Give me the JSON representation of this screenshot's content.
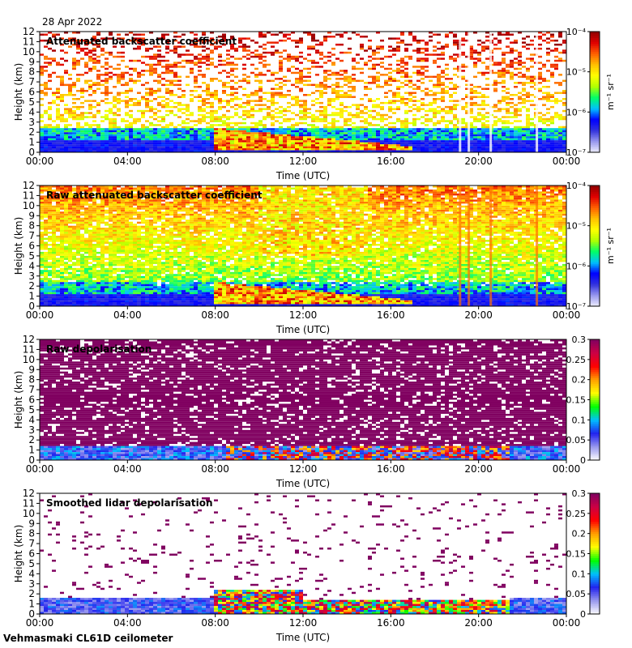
{
  "header": {
    "date": "28 Apr 2022"
  },
  "footer": {
    "instrument": "Vehmasmaki CL61D ceilometer"
  },
  "colors": {
    "background": "#ffffff",
    "noise_fill": "#f3f3f7",
    "backscatter_scale": [
      "#f0f0ff",
      "#9999ee",
      "#3333dd",
      "#0000ff",
      "#00c0ff",
      "#00ff66",
      "#b0ff00",
      "#ffff00",
      "#ffc000",
      "#ff6000",
      "#e00000",
      "#900000"
    ],
    "depol_scale": [
      "#ffffff",
      "#9999ee",
      "#2222ee",
      "#00c0ff",
      "#00ff00",
      "#ffff00",
      "#ffa000",
      "#ff0000",
      "#cc0044",
      "#800060"
    ]
  },
  "chart_data": [
    {
      "type": "heatmap",
      "title": "Attenuated backscatter coefficient",
      "xlabel": "Time (UTC)",
      "ylabel": "Height (km)",
      "x_ticks": [
        "00:00",
        "04:00",
        "08:00",
        "12:00",
        "16:00",
        "20:00",
        "00:00"
      ],
      "y_ticks": [
        "0",
        "1",
        "2",
        "3",
        "4",
        "5",
        "6",
        "7",
        "8",
        "9",
        "10",
        "11",
        "12"
      ],
      "xlim_hours": [
        0,
        24
      ],
      "ylim_km": [
        0,
        12
      ],
      "colorbar": {
        "label": "m⁻¹ sr⁻¹",
        "scale": "log",
        "ticks": [
          "10⁻⁷",
          "10⁻⁶",
          "10⁻⁵",
          "10⁻⁴"
        ],
        "range": [
          1e-07,
          0.0001
        ]
      },
      "features": [
        {
          "name": "boundary layer",
          "time_range_h": [
            0,
            24
          ],
          "height_range_km": [
            0,
            1.5
          ]
        },
        {
          "name": "elevated aerosol layer",
          "time_range_h": [
            8,
            17
          ],
          "height_range_km": [
            0.5,
            2.5
          ]
        },
        {
          "name": "precipitation streaks",
          "times_h": [
            19.1,
            19.5,
            20.5,
            22.6
          ]
        }
      ]
    },
    {
      "type": "heatmap",
      "title": "Raw attenuated backscatter coefficient",
      "xlabel": "Time (UTC)",
      "ylabel": "Height (km)",
      "x_ticks": [
        "00:00",
        "04:00",
        "08:00",
        "12:00",
        "16:00",
        "20:00",
        "00:00"
      ],
      "y_ticks": [
        "0",
        "1",
        "2",
        "3",
        "4",
        "5",
        "6",
        "7",
        "8",
        "9",
        "10",
        "11",
        "12"
      ],
      "xlim_hours": [
        0,
        24
      ],
      "ylim_km": [
        0,
        12
      ],
      "colorbar": {
        "label": "m⁻¹ sr⁻¹",
        "scale": "log",
        "ticks": [
          "10⁻⁷",
          "10⁻⁶",
          "10⁻⁵",
          "10⁻⁴"
        ],
        "range": [
          1e-07,
          0.0001
        ]
      },
      "features": [
        {
          "name": "boundary layer",
          "time_range_h": [
            0,
            24
          ],
          "height_range_km": [
            0,
            1.5
          ]
        },
        {
          "name": "elevated aerosol layer",
          "time_range_h": [
            8,
            17
          ],
          "height_range_km": [
            0.5,
            2.5
          ]
        },
        {
          "name": "precipitation streaks",
          "times_h": [
            19.1,
            19.5,
            20.5,
            22.6
          ]
        }
      ]
    },
    {
      "type": "heatmap",
      "title": "Raw depolarisation",
      "xlabel": "Time (UTC)",
      "ylabel": "Height (km)",
      "x_ticks": [
        "00:00",
        "04:00",
        "08:00",
        "12:00",
        "16:00",
        "20:00",
        "00:00"
      ],
      "y_ticks": [
        "0",
        "1",
        "2",
        "3",
        "4",
        "5",
        "6",
        "7",
        "8",
        "9",
        "10",
        "11",
        "12"
      ],
      "xlim_hours": [
        0,
        24
      ],
      "ylim_km": [
        0,
        12
      ],
      "colorbar": {
        "label": "",
        "scale": "linear",
        "ticks": [
          "0",
          "0.05",
          "0.1",
          "0.15",
          "0.2",
          "0.25",
          "0.3"
        ],
        "range": [
          0,
          0.3
        ]
      }
    },
    {
      "type": "heatmap",
      "title": "Smoothed lidar depolarisation",
      "xlabel": "Time (UTC)",
      "ylabel": "Height (km)",
      "x_ticks": [
        "00:00",
        "04:00",
        "08:00",
        "12:00",
        "16:00",
        "20:00",
        "00:00"
      ],
      "y_ticks": [
        "0",
        "1",
        "2",
        "3",
        "4",
        "5",
        "6",
        "7",
        "8",
        "9",
        "10",
        "11",
        "12"
      ],
      "xlim_hours": [
        0,
        24
      ],
      "ylim_km": [
        0,
        12
      ],
      "colorbar": {
        "label": "",
        "scale": "linear",
        "ticks": [
          "0",
          "0.05",
          "0.1",
          "0.15",
          "0.2",
          "0.25",
          "0.3"
        ],
        "range": [
          0,
          0.3
        ]
      }
    }
  ]
}
